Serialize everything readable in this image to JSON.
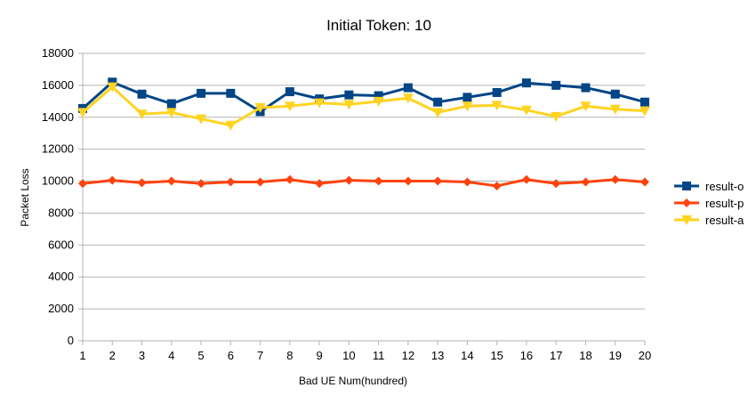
{
  "chart_data": {
    "type": "line",
    "title": "Initial Token: 10",
    "xlabel": "Bad UE Num(hundred)",
    "ylabel": "Packet Loss",
    "x": [
      1,
      2,
      3,
      4,
      5,
      6,
      7,
      8,
      9,
      10,
      11,
      12,
      13,
      14,
      15,
      16,
      17,
      18,
      19,
      20
    ],
    "ylim": [
      0,
      18000
    ],
    "yticks": [
      0,
      2000,
      4000,
      6000,
      8000,
      10000,
      12000,
      14000,
      16000,
      18000
    ],
    "grid": true,
    "legend_position": "right",
    "series": [
      {
        "name": "result-o",
        "color": "#004586",
        "marker": "square",
        "values": [
          14550,
          16200,
          15450,
          14850,
          15500,
          15500,
          14350,
          15600,
          15150,
          15400,
          15350,
          15850,
          14950,
          15250,
          15550,
          16150,
          16000,
          15850,
          15450,
          14950
        ]
      },
      {
        "name": "result-p",
        "color": "#ff420e",
        "marker": "diamond",
        "values": [
          9850,
          10050,
          9900,
          10000,
          9850,
          9950,
          9950,
          10100,
          9850,
          10050,
          10000,
          10000,
          10000,
          9950,
          9700,
          10100,
          9850,
          9950,
          10100,
          9950
        ]
      },
      {
        "name": "result-a",
        "color": "#ffd320",
        "marker": "triangle-down",
        "values": [
          14300,
          15900,
          14200,
          14300,
          13900,
          13500,
          14600,
          14700,
          14900,
          14800,
          15000,
          15200,
          14300,
          14700,
          14750,
          14450,
          14050,
          14700,
          14500,
          14400
        ]
      }
    ]
  }
}
